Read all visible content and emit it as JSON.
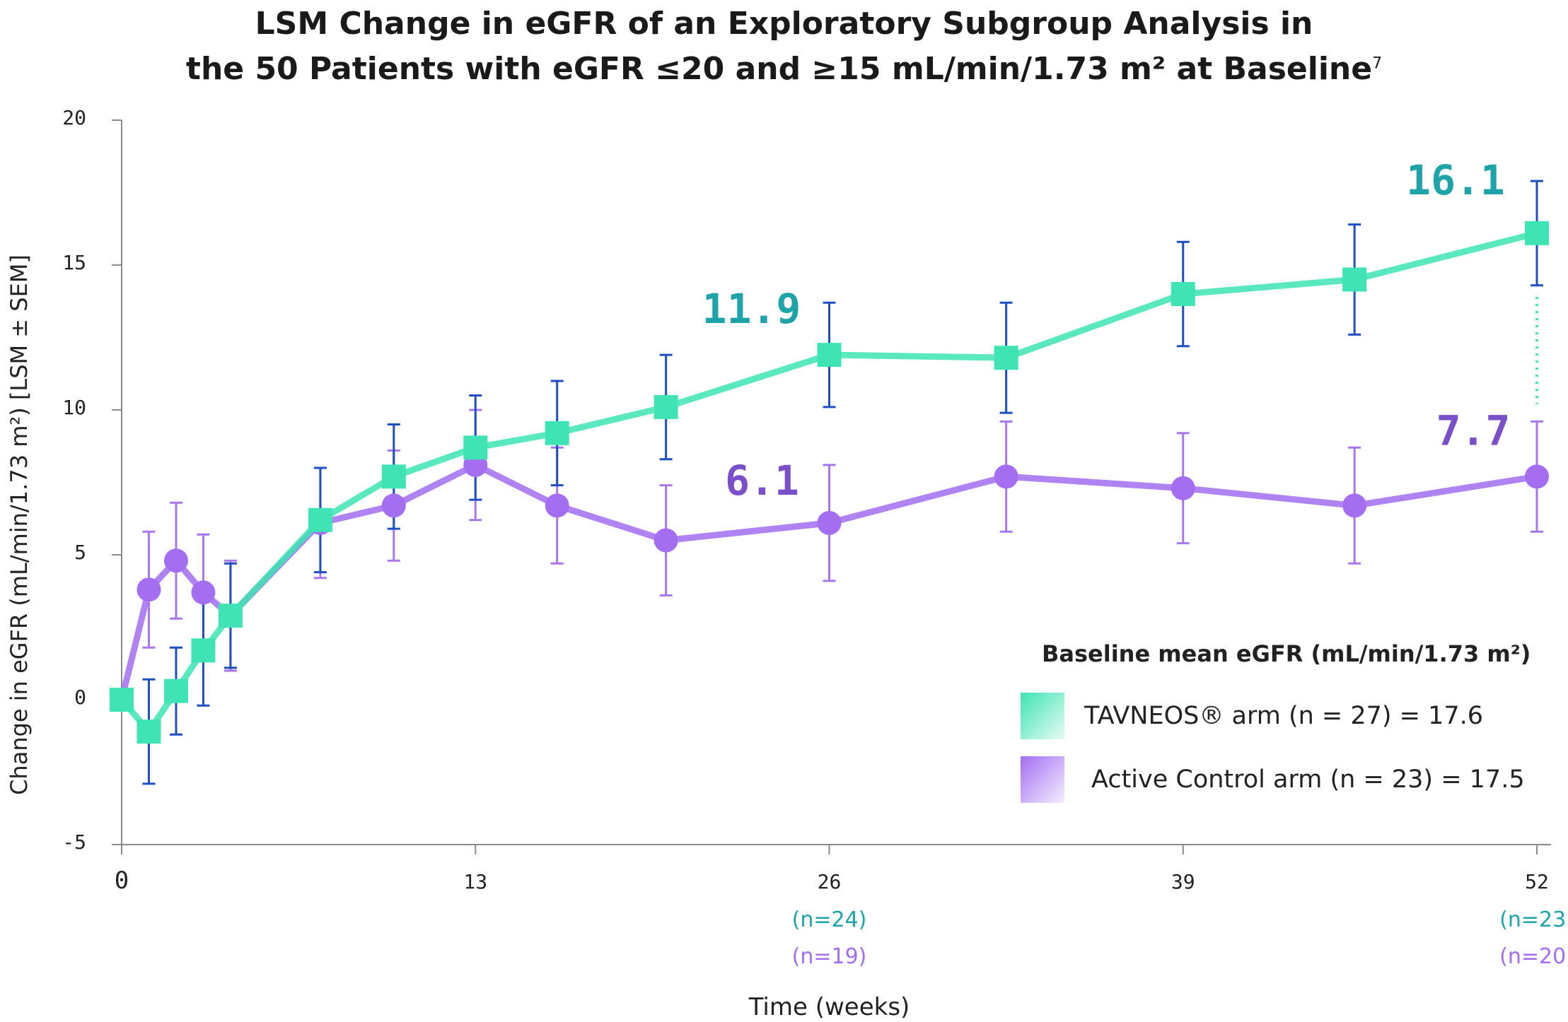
{
  "title": {
    "line1": "LSM Change in eGFR of an Exploratory Subgroup Analysis in",
    "line2": "the 50 Patients with eGFR ≤20 and ≥15 mL/min/1.73 m² at Baseline",
    "superscript": "7"
  },
  "colors": {
    "tavneos": "#3ee4b3",
    "tavneos_label": "#1ea3a8",
    "tavneos_error": "#1d4ec2",
    "control": "#a36ef2",
    "control_label": "#7a4fc9",
    "control_error": "#a877ee",
    "axis": "#8a8a8a",
    "text": "#222222"
  },
  "chart_data": {
    "type": "line",
    "xlabel": "Time (weeks)",
    "ylabel": "Change in eGFR (mL/min/1.73 m²) [LSM ± SEM]",
    "ylim": [
      -5,
      20
    ],
    "xlim": [
      0,
      52
    ],
    "yticks": [
      "20",
      "15",
      "10",
      "5",
      "0",
      "-5"
    ],
    "xticks": [
      "0",
      "13",
      "26",
      "39",
      "52"
    ],
    "n_labels": [
      {
        "x": 26,
        "tavneos": "(n=24)",
        "control": "(n=19)"
      },
      {
        "x": 52,
        "tavneos": "(n=23)",
        "control": "(n=20)"
      }
    ],
    "series": [
      {
        "name": "TAVNEOS® arm (n = 27) = 17.6",
        "marker": "square",
        "x": [
          0,
          1,
          2,
          3,
          4,
          7.3,
          10,
          13,
          16,
          20,
          26,
          32.5,
          39,
          45.3,
          52
        ],
        "y": [
          0,
          -1.1,
          0.3,
          1.7,
          2.9,
          6.2,
          7.7,
          8.7,
          9.2,
          10.1,
          11.9,
          11.8,
          14.0,
          14.5,
          16.1
        ],
        "err": [
          0,
          1.8,
          1.5,
          1.9,
          1.8,
          1.8,
          1.8,
          1.8,
          1.8,
          1.8,
          1.8,
          1.9,
          1.8,
          1.9,
          1.8
        ]
      },
      {
        "name": "Active Control arm (n = 23) = 17.5",
        "marker": "circle",
        "x": [
          0,
          1,
          2,
          3,
          4,
          7.3,
          10,
          13,
          16,
          20,
          26,
          32.5,
          39,
          45.3,
          52
        ],
        "y": [
          0,
          3.8,
          4.8,
          3.7,
          2.9,
          6.1,
          6.7,
          8.1,
          6.7,
          5.5,
          6.1,
          7.7,
          7.3,
          6.7,
          7.7
        ],
        "err": [
          0,
          2.0,
          2.0,
          2.0,
          1.9,
          1.9,
          1.9,
          1.9,
          2.0,
          1.9,
          2.0,
          1.9,
          1.9,
          2.0,
          1.9
        ]
      }
    ],
    "annotations": [
      {
        "series": 0,
        "x": 26,
        "text": "11.9"
      },
      {
        "series": 0,
        "x": 52,
        "text": "16.1"
      },
      {
        "series": 1,
        "x": 26,
        "text": "6.1"
      },
      {
        "series": 1,
        "x": 52,
        "text": "7.7"
      }
    ],
    "legend": {
      "title": "Baseline mean eGFR (mL/min/1.73 m²)",
      "position": "bottom-right",
      "items": [
        "TAVNEOS® arm (n = 27) = 17.6",
        "Active Control arm (n = 23) = 17.5"
      ]
    },
    "grid": false
  }
}
